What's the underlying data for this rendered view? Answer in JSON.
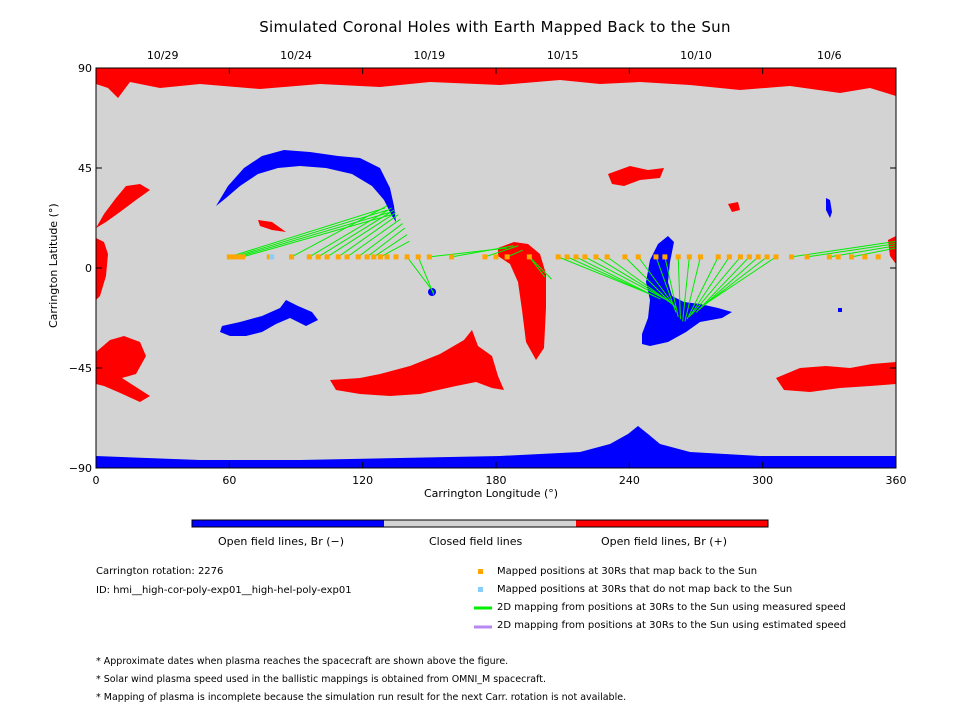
{
  "chart_data": {
    "type": "scatter",
    "title": "Simulated Coronal Holes with Earth Mapped Back to the Sun",
    "xlabel": "Carrington Longitude (°)",
    "ylabel": "Carrington Latitude (°)",
    "xlim": [
      0,
      360
    ],
    "ylim": [
      -90,
      90
    ],
    "x_ticks": [
      "0",
      "60",
      "120",
      "180",
      "240",
      "300",
      "360"
    ],
    "y_ticks": [
      "90",
      "45",
      "0",
      "−45",
      "−90"
    ],
    "top_axis_dates": [
      {
        "label": "10/29",
        "lon": 30
      },
      {
        "label": "10/24",
        "lon": 90
      },
      {
        "label": "10/19",
        "lon": 150
      },
      {
        "label": "10/15",
        "lon": 210
      },
      {
        "label": "10/10",
        "lon": 270
      },
      {
        "label": "10/6",
        "lon": 330
      }
    ],
    "colorbar": [
      {
        "label": "Open field lines, Br (−)",
        "color": "#0000ff"
      },
      {
        "label": "Closed field lines",
        "color": "#d3d3d3"
      },
      {
        "label": "Open field lines, Br (+)",
        "color": "#ff0000"
      }
    ],
    "mapped_points": [
      {
        "lon": 60,
        "lat": 5
      },
      {
        "lon": 62,
        "lat": 5
      },
      {
        "lon": 64,
        "lat": 5
      },
      {
        "lon": 66,
        "lat": 5
      },
      {
        "lon": 78,
        "lat": 5
      },
      {
        "lon": 88,
        "lat": 5
      },
      {
        "lon": 96,
        "lat": 5
      },
      {
        "lon": 100,
        "lat": 5
      },
      {
        "lon": 104,
        "lat": 5
      },
      {
        "lon": 109,
        "lat": 5
      },
      {
        "lon": 113,
        "lat": 5
      },
      {
        "lon": 118,
        "lat": 5
      },
      {
        "lon": 122,
        "lat": 5
      },
      {
        "lon": 125,
        "lat": 5
      },
      {
        "lon": 128,
        "lat": 5
      },
      {
        "lon": 131,
        "lat": 5
      },
      {
        "lon": 135,
        "lat": 5
      },
      {
        "lon": 140,
        "lat": 5
      },
      {
        "lon": 145,
        "lat": 5
      },
      {
        "lon": 150,
        "lat": 5
      },
      {
        "lon": 160,
        "lat": 5
      },
      {
        "lon": 175,
        "lat": 5
      },
      {
        "lon": 180,
        "lat": 5
      },
      {
        "lon": 185,
        "lat": 5
      },
      {
        "lon": 195,
        "lat": 5
      },
      {
        "lon": 208,
        "lat": 5
      },
      {
        "lon": 212,
        "lat": 5
      },
      {
        "lon": 216,
        "lat": 5
      },
      {
        "lon": 220,
        "lat": 5
      },
      {
        "lon": 225,
        "lat": 5
      },
      {
        "lon": 230,
        "lat": 5
      },
      {
        "lon": 238,
        "lat": 5
      },
      {
        "lon": 244,
        "lat": 5
      },
      {
        "lon": 252,
        "lat": 5
      },
      {
        "lon": 256,
        "lat": 5
      },
      {
        "lon": 262,
        "lat": 5
      },
      {
        "lon": 267,
        "lat": 5
      },
      {
        "lon": 272,
        "lat": 5
      },
      {
        "lon": 280,
        "lat": 5
      },
      {
        "lon": 285,
        "lat": 5
      },
      {
        "lon": 290,
        "lat": 5
      },
      {
        "lon": 294,
        "lat": 5
      },
      {
        "lon": 298,
        "lat": 5
      },
      {
        "lon": 302,
        "lat": 5
      },
      {
        "lon": 306,
        "lat": 5
      },
      {
        "lon": 313,
        "lat": 5
      },
      {
        "lon": 320,
        "lat": 5
      },
      {
        "lon": 330,
        "lat": 5
      },
      {
        "lon": 334,
        "lat": 5
      },
      {
        "lon": 340,
        "lat": 5
      },
      {
        "lon": 346,
        "lat": 5
      },
      {
        "lon": 352,
        "lat": 5
      }
    ],
    "unmapped_points": [
      {
        "lon": 79,
        "lat": 5
      }
    ],
    "mappings_measured": [
      {
        "from": [
          60,
          5
        ],
        "to": [
          130,
          27
        ]
      },
      {
        "from": [
          62,
          5
        ],
        "to": [
          131,
          26
        ]
      },
      {
        "from": [
          64,
          5
        ],
        "to": [
          132,
          25
        ]
      },
      {
        "from": [
          66,
          5
        ],
        "to": [
          133,
          24
        ]
      },
      {
        "from": [
          88,
          5
        ],
        "to": [
          131,
          28
        ]
      },
      {
        "from": [
          96,
          5
        ],
        "to": [
          133,
          27
        ]
      },
      {
        "from": [
          100,
          5
        ],
        "to": [
          134,
          26
        ]
      },
      {
        "from": [
          104,
          5
        ],
        "to": [
          135,
          25
        ]
      },
      {
        "from": [
          109,
          5
        ],
        "to": [
          136,
          24
        ]
      },
      {
        "from": [
          113,
          5
        ],
        "to": [
          137,
          22
        ]
      },
      {
        "from": [
          118,
          5
        ],
        "to": [
          138,
          20
        ]
      },
      {
        "from": [
          122,
          5
        ],
        "to": [
          139,
          18
        ]
      },
      {
        "from": [
          125,
          5
        ],
        "to": [
          140,
          15
        ]
      },
      {
        "from": [
          128,
          5
        ],
        "to": [
          141,
          12
        ]
      },
      {
        "from": [
          140,
          5
        ],
        "to": [
          152,
          -11
        ]
      },
      {
        "from": [
          145,
          5
        ],
        "to": [
          152,
          -12
        ]
      },
      {
        "from": [
          150,
          5
        ],
        "to": [
          185,
          9
        ]
      },
      {
        "from": [
          160,
          5
        ],
        "to": [
          188,
          10
        ]
      },
      {
        "from": [
          175,
          5
        ],
        "to": [
          190,
          10
        ]
      },
      {
        "from": [
          185,
          5
        ],
        "to": [
          192,
          8
        ]
      },
      {
        "from": [
          195,
          5
        ],
        "to": [
          202,
          -4
        ]
      },
      {
        "from": [
          195,
          5
        ],
        "to": [
          205,
          -5
        ]
      },
      {
        "from": [
          208,
          5
        ],
        "to": [
          250,
          -12
        ]
      },
      {
        "from": [
          212,
          5
        ],
        "to": [
          252,
          -13
        ]
      },
      {
        "from": [
          216,
          5
        ],
        "to": [
          254,
          -14
        ]
      },
      {
        "from": [
          220,
          5
        ],
        "to": [
          256,
          -14
        ]
      },
      {
        "from": [
          225,
          5
        ],
        "to": [
          258,
          -15
        ]
      },
      {
        "from": [
          230,
          5
        ],
        "to": [
          259,
          -16
        ]
      },
      {
        "from": [
          238,
          5
        ],
        "to": [
          260,
          -17
        ]
      },
      {
        "from": [
          244,
          5
        ],
        "to": [
          261,
          -18
        ]
      },
      {
        "from": [
          252,
          5
        ],
        "to": [
          261,
          -20
        ]
      },
      {
        "from": [
          256,
          5
        ],
        "to": [
          262,
          -22
        ]
      },
      {
        "from": [
          262,
          5
        ],
        "to": [
          263,
          -23
        ]
      },
      {
        "from": [
          267,
          5
        ],
        "to": [
          264,
          -24
        ]
      },
      {
        "from": [
          272,
          5
        ],
        "to": [
          265,
          -24
        ]
      },
      {
        "from": [
          280,
          5
        ],
        "to": [
          266,
          -23
        ]
      },
      {
        "from": [
          285,
          5
        ],
        "to": [
          267,
          -22
        ]
      },
      {
        "from": [
          290,
          5
        ],
        "to": [
          268,
          -21
        ]
      },
      {
        "from": [
          294,
          5
        ],
        "to": [
          270,
          -20
        ]
      },
      {
        "from": [
          298,
          5
        ],
        "to": [
          271,
          -19
        ]
      },
      {
        "from": [
          302,
          5
        ],
        "to": [
          272,
          -18
        ]
      },
      {
        "from": [
          306,
          5
        ],
        "to": [
          273,
          -17
        ]
      },
      {
        "from": [
          313,
          5
        ],
        "to": [
          360,
          12
        ]
      },
      {
        "from": [
          320,
          5
        ],
        "to": [
          360,
          11
        ]
      },
      {
        "from": [
          330,
          5
        ],
        "to": [
          360,
          10
        ]
      },
      {
        "from": [
          340,
          5
        ],
        "to": [
          360,
          9
        ]
      }
    ]
  },
  "legend": {
    "mapped": "Mapped positions at 30Rs that map back to the Sun",
    "unmapped": "Mapped positions at 30Rs that do not map back to the Sun",
    "measured": "2D mapping from positions at 30Rs to the Sun using measured speed",
    "estimated": "2D mapping from positions at 30Rs to the Sun using estimated speed"
  },
  "colors": {
    "mapped": "#ffa500",
    "unmapped": "#87cefa",
    "measured": "#00ee00",
    "estimated": "#b788f0",
    "closed": "#d3d3d3",
    "negative": "#0000ff",
    "positive": "#ff0000"
  },
  "info": {
    "rotation": "Carrington rotation: 2276",
    "id": "ID: hmi__high-cor-poly-exp01__high-hel-poly-exp01"
  },
  "notes": [
    "* Approximate dates when plasma reaches the spacecraft are shown above the figure.",
    "* Solar wind plasma speed used in the ballistic mappings is obtained from OMNI_M spacecraft.",
    "* Mapping of plasma is incomplete because the simulation run result for the next Carr. rotation is not available."
  ]
}
